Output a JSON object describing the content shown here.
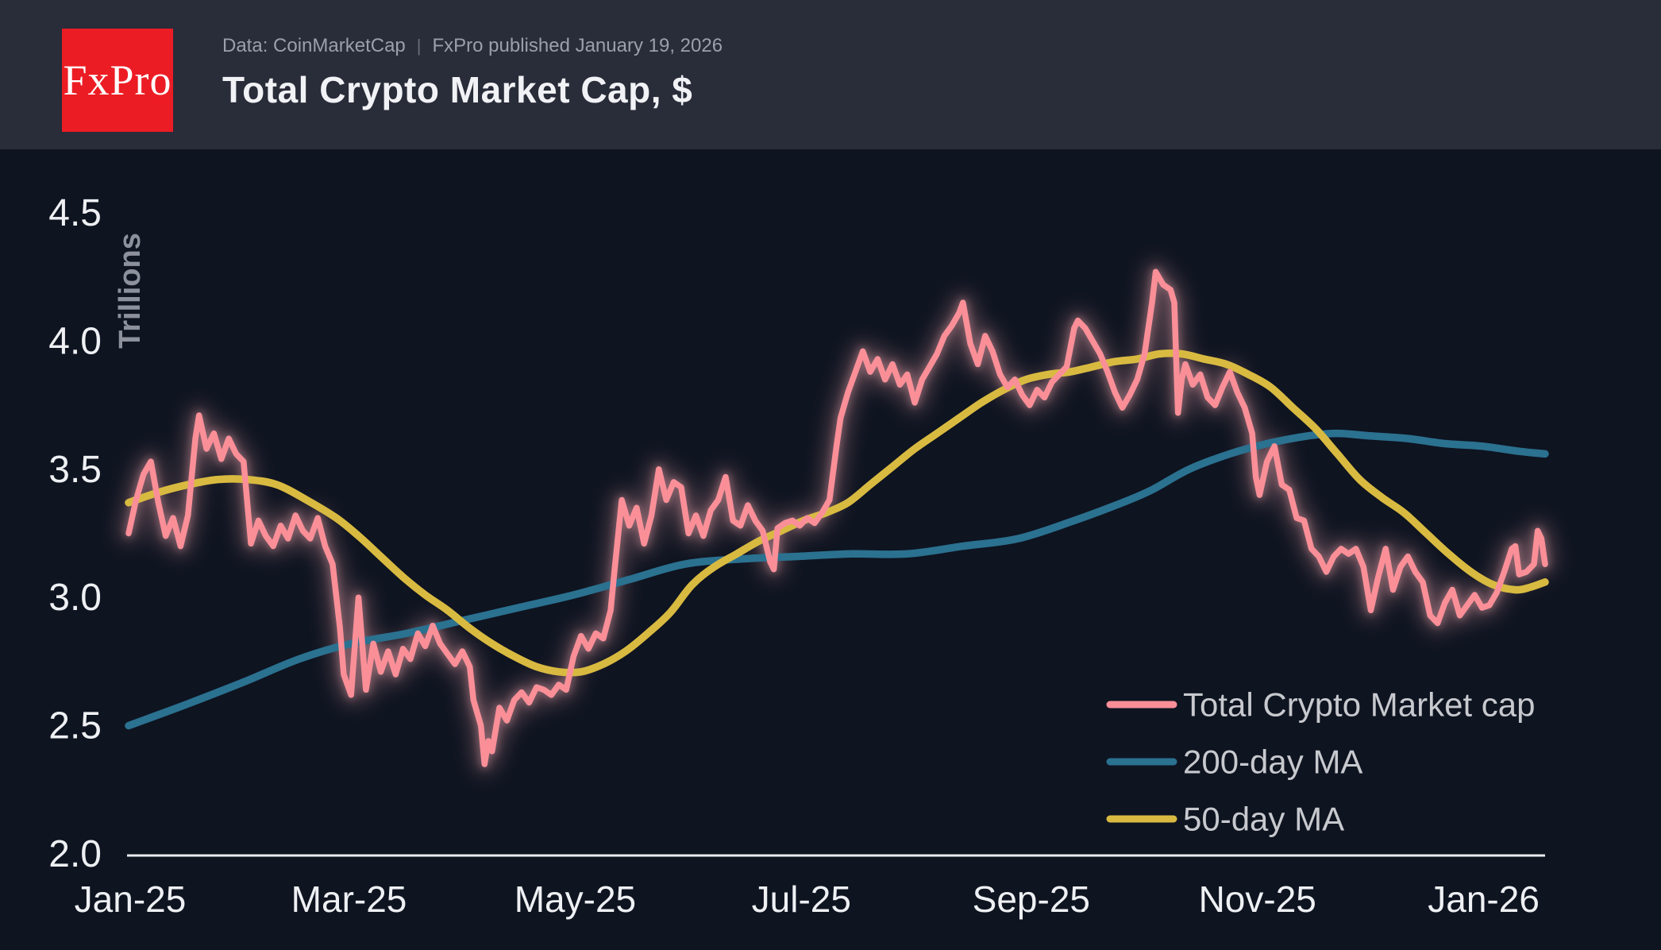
{
  "header": {
    "logo_text": "FxPro",
    "source_line": "Data: CoinMarketCap",
    "separator": "|",
    "published_line": "FxPro published January 19, 2026",
    "title": "Total Crypto Market Cap, $"
  },
  "colors": {
    "page_background": "#0e1420",
    "header_background": "#292c39",
    "logo_red": "#ec1c24",
    "axis": "#e9ebef",
    "tick_label": "#eef0f3",
    "y_axis_title": "#8d919b",
    "legend_text": "#c7c9ce",
    "market_cap_line": "#fa8f98",
    "ma200_line": "#2b7190",
    "ma50_line": "#d9ba41",
    "glow": "#f1a6ae"
  },
  "chart_data": {
    "type": "line",
    "title": "Total Crypto Market Cap, $",
    "ylabel": "Trillions",
    "x_unit": "days since 2025-01-01",
    "xlim_days": [
      0,
      382
    ],
    "ylim": [
      2.0,
      4.5
    ],
    "grid": false,
    "legend_position": "bottom-right",
    "x_tick_labels": [
      "Jan-25",
      "Mar-25",
      "May-25",
      "Jul-25",
      "Sep-25",
      "Nov-25",
      "Jan-26"
    ],
    "x_tick_days": [
      0,
      59,
      120,
      181,
      243,
      304,
      365
    ],
    "y_tick_labels": [
      "4.5",
      "4.0",
      "3.5",
      "3.0",
      "2.5",
      "2.0"
    ],
    "y_tick_values": [
      4.5,
      4.0,
      3.5,
      3.0,
      2.5,
      2.0
    ],
    "series": [
      {
        "name": "Total Crypto Market cap",
        "color": "#fa8f98",
        "width": 7.5,
        "glow": true,
        "smooth": false,
        "points": [
          [
            0,
            3.25
          ],
          [
            2,
            3.38
          ],
          [
            4,
            3.48
          ],
          [
            6,
            3.53
          ],
          [
            8,
            3.37
          ],
          [
            10,
            3.24
          ],
          [
            12,
            3.31
          ],
          [
            14,
            3.2
          ],
          [
            16,
            3.32
          ],
          [
            18,
            3.62
          ],
          [
            19,
            3.71
          ],
          [
            21,
            3.58
          ],
          [
            23,
            3.64
          ],
          [
            25,
            3.54
          ],
          [
            27,
            3.62
          ],
          [
            29,
            3.56
          ],
          [
            31,
            3.53
          ],
          [
            33,
            3.21
          ],
          [
            35,
            3.3
          ],
          [
            37,
            3.24
          ],
          [
            39,
            3.2
          ],
          [
            41,
            3.28
          ],
          [
            43,
            3.23
          ],
          [
            45,
            3.32
          ],
          [
            47,
            3.26
          ],
          [
            49,
            3.23
          ],
          [
            51,
            3.31
          ],
          [
            53,
            3.2
          ],
          [
            55,
            3.13
          ],
          [
            57,
            2.88
          ],
          [
            58,
            2.7
          ],
          [
            60,
            2.62
          ],
          [
            62,
            3.0
          ],
          [
            64,
            2.64
          ],
          [
            66,
            2.82
          ],
          [
            68,
            2.71
          ],
          [
            70,
            2.79
          ],
          [
            72,
            2.7
          ],
          [
            74,
            2.8
          ],
          [
            76,
            2.76
          ],
          [
            78,
            2.86
          ],
          [
            80,
            2.81
          ],
          [
            82,
            2.89
          ],
          [
            84,
            2.82
          ],
          [
            86,
            2.78
          ],
          [
            88,
            2.74
          ],
          [
            90,
            2.79
          ],
          [
            92,
            2.73
          ],
          [
            93,
            2.6
          ],
          [
            95,
            2.5
          ],
          [
            96,
            2.35
          ],
          [
            97,
            2.44
          ],
          [
            98,
            2.4
          ],
          [
            100,
            2.57
          ],
          [
            102,
            2.52
          ],
          [
            104,
            2.6
          ],
          [
            106,
            2.63
          ],
          [
            108,
            2.59
          ],
          [
            110,
            2.65
          ],
          [
            112,
            2.64
          ],
          [
            114,
            2.62
          ],
          [
            116,
            2.66
          ],
          [
            118,
            2.64
          ],
          [
            120,
            2.77
          ],
          [
            122,
            2.85
          ],
          [
            124,
            2.8
          ],
          [
            126,
            2.86
          ],
          [
            128,
            2.84
          ],
          [
            130,
            2.95
          ],
          [
            131,
            3.1
          ],
          [
            133,
            3.38
          ],
          [
            135,
            3.28
          ],
          [
            137,
            3.35
          ],
          [
            139,
            3.21
          ],
          [
            141,
            3.32
          ],
          [
            143,
            3.5
          ],
          [
            145,
            3.38
          ],
          [
            147,
            3.45
          ],
          [
            149,
            3.43
          ],
          [
            151,
            3.25
          ],
          [
            153,
            3.32
          ],
          [
            155,
            3.24
          ],
          [
            157,
            3.34
          ],
          [
            159,
            3.38
          ],
          [
            161,
            3.47
          ],
          [
            163,
            3.3
          ],
          [
            165,
            3.28
          ],
          [
            167,
            3.36
          ],
          [
            169,
            3.3
          ],
          [
            171,
            3.26
          ],
          [
            173,
            3.14
          ],
          [
            174,
            3.11
          ],
          [
            175,
            3.27
          ],
          [
            177,
            3.29
          ],
          [
            179,
            3.3
          ],
          [
            181,
            3.28
          ],
          [
            183,
            3.31
          ],
          [
            185,
            3.29
          ],
          [
            187,
            3.33
          ],
          [
            189,
            3.38
          ],
          [
            191,
            3.6
          ],
          [
            192,
            3.7
          ],
          [
            194,
            3.8
          ],
          [
            196,
            3.88
          ],
          [
            198,
            3.96
          ],
          [
            200,
            3.88
          ],
          [
            202,
            3.93
          ],
          [
            204,
            3.85
          ],
          [
            206,
            3.91
          ],
          [
            208,
            3.83
          ],
          [
            210,
            3.87
          ],
          [
            212,
            3.76
          ],
          [
            214,
            3.85
          ],
          [
            216,
            3.9
          ],
          [
            218,
            3.95
          ],
          [
            220,
            4.02
          ],
          [
            222,
            4.06
          ],
          [
            224,
            4.11
          ],
          [
            225,
            4.15
          ],
          [
            227,
            3.99
          ],
          [
            229,
            3.91
          ],
          [
            231,
            4.02
          ],
          [
            233,
            3.96
          ],
          [
            235,
            3.87
          ],
          [
            237,
            3.82
          ],
          [
            239,
            3.85
          ],
          [
            241,
            3.79
          ],
          [
            243,
            3.75
          ],
          [
            245,
            3.81
          ],
          [
            247,
            3.78
          ],
          [
            249,
            3.84
          ],
          [
            251,
            3.87
          ],
          [
            253,
            3.9
          ],
          [
            255,
            4.05
          ],
          [
            256,
            4.08
          ],
          [
            258,
            4.05
          ],
          [
            260,
            4.0
          ],
          [
            262,
            3.95
          ],
          [
            264,
            3.88
          ],
          [
            266,
            3.8
          ],
          [
            268,
            3.74
          ],
          [
            270,
            3.79
          ],
          [
            272,
            3.85
          ],
          [
            274,
            3.95
          ],
          [
            276,
            4.15
          ],
          [
            277,
            4.27
          ],
          [
            279,
            4.22
          ],
          [
            281,
            4.2
          ],
          [
            282,
            4.15
          ],
          [
            283,
            3.72
          ],
          [
            284,
            3.85
          ],
          [
            285,
            3.91
          ],
          [
            287,
            3.83
          ],
          [
            289,
            3.87
          ],
          [
            291,
            3.78
          ],
          [
            293,
            3.75
          ],
          [
            295,
            3.82
          ],
          [
            297,
            3.88
          ],
          [
            299,
            3.8
          ],
          [
            301,
            3.74
          ],
          [
            303,
            3.64
          ],
          [
            304,
            3.47
          ],
          [
            305,
            3.4
          ],
          [
            307,
            3.53
          ],
          [
            309,
            3.59
          ],
          [
            311,
            3.44
          ],
          [
            313,
            3.42
          ],
          [
            315,
            3.31
          ],
          [
            317,
            3.3
          ],
          [
            319,
            3.19
          ],
          [
            321,
            3.16
          ],
          [
            323,
            3.1
          ],
          [
            325,
            3.16
          ],
          [
            327,
            3.19
          ],
          [
            329,
            3.17
          ],
          [
            331,
            3.19
          ],
          [
            333,
            3.12
          ],
          [
            335,
            2.95
          ],
          [
            337,
            3.08
          ],
          [
            339,
            3.19
          ],
          [
            341,
            3.03
          ],
          [
            343,
            3.12
          ],
          [
            345,
            3.16
          ],
          [
            347,
            3.1
          ],
          [
            349,
            3.06
          ],
          [
            351,
            2.93
          ],
          [
            353,
            2.9
          ],
          [
            355,
            2.98
          ],
          [
            357,
            3.03
          ],
          [
            359,
            2.93
          ],
          [
            361,
            2.97
          ],
          [
            363,
            3.01
          ],
          [
            365,
            2.96
          ],
          [
            367,
            2.97
          ],
          [
            369,
            3.02
          ],
          [
            371,
            3.1
          ],
          [
            373,
            3.19
          ],
          [
            374,
            3.2
          ],
          [
            375,
            3.09
          ],
          [
            377,
            3.1
          ],
          [
            379,
            3.13
          ],
          [
            380,
            3.26
          ],
          [
            381,
            3.23
          ],
          [
            382,
            3.13
          ]
        ]
      },
      {
        "name": "200-day MA",
        "color": "#2b7190",
        "width": 9.5,
        "glow": false,
        "smooth": true,
        "points": [
          [
            0,
            2.5
          ],
          [
            15,
            2.58
          ],
          [
            31,
            2.67
          ],
          [
            46,
            2.76
          ],
          [
            60,
            2.82
          ],
          [
            75,
            2.86
          ],
          [
            90,
            2.91
          ],
          [
            105,
            2.96
          ],
          [
            120,
            3.01
          ],
          [
            135,
            3.07
          ],
          [
            150,
            3.13
          ],
          [
            165,
            3.15
          ],
          [
            180,
            3.16
          ],
          [
            195,
            3.17
          ],
          [
            210,
            3.17
          ],
          [
            225,
            3.2
          ],
          [
            240,
            3.23
          ],
          [
            255,
            3.3
          ],
          [
            268,
            3.37
          ],
          [
            276,
            3.42
          ],
          [
            286,
            3.5
          ],
          [
            297,
            3.56
          ],
          [
            307,
            3.6
          ],
          [
            318,
            3.63
          ],
          [
            326,
            3.64
          ],
          [
            335,
            3.63
          ],
          [
            345,
            3.62
          ],
          [
            355,
            3.6
          ],
          [
            365,
            3.59
          ],
          [
            375,
            3.57
          ],
          [
            382,
            3.56
          ]
        ]
      },
      {
        "name": "50-day MA",
        "color": "#d9ba41",
        "width": 9.5,
        "glow": false,
        "smooth": true,
        "points": [
          [
            0,
            3.37
          ],
          [
            8,
            3.41
          ],
          [
            16,
            3.44
          ],
          [
            24,
            3.46
          ],
          [
            32,
            3.46
          ],
          [
            40,
            3.44
          ],
          [
            48,
            3.38
          ],
          [
            56,
            3.31
          ],
          [
            62,
            3.24
          ],
          [
            68,
            3.16
          ],
          [
            74,
            3.08
          ],
          [
            80,
            3.01
          ],
          [
            86,
            2.95
          ],
          [
            92,
            2.88
          ],
          [
            98,
            2.82
          ],
          [
            104,
            2.77
          ],
          [
            110,
            2.73
          ],
          [
            116,
            2.71
          ],
          [
            122,
            2.71
          ],
          [
            128,
            2.74
          ],
          [
            134,
            2.79
          ],
          [
            140,
            2.86
          ],
          [
            146,
            2.94
          ],
          [
            152,
            3.05
          ],
          [
            158,
            3.12
          ],
          [
            164,
            3.17
          ],
          [
            170,
            3.22
          ],
          [
            176,
            3.26
          ],
          [
            182,
            3.3
          ],
          [
            188,
            3.33
          ],
          [
            194,
            3.37
          ],
          [
            200,
            3.44
          ],
          [
            206,
            3.51
          ],
          [
            212,
            3.58
          ],
          [
            218,
            3.64
          ],
          [
            224,
            3.7
          ],
          [
            230,
            3.76
          ],
          [
            236,
            3.81
          ],
          [
            242,
            3.85
          ],
          [
            248,
            3.87
          ],
          [
            254,
            3.88
          ],
          [
            260,
            3.9
          ],
          [
            266,
            3.92
          ],
          [
            272,
            3.93
          ],
          [
            278,
            3.95
          ],
          [
            284,
            3.95
          ],
          [
            290,
            3.93
          ],
          [
            296,
            3.91
          ],
          [
            302,
            3.87
          ],
          [
            308,
            3.82
          ],
          [
            314,
            3.74
          ],
          [
            320,
            3.66
          ],
          [
            326,
            3.56
          ],
          [
            332,
            3.46
          ],
          [
            338,
            3.39
          ],
          [
            344,
            3.33
          ],
          [
            350,
            3.25
          ],
          [
            356,
            3.17
          ],
          [
            362,
            3.1
          ],
          [
            368,
            3.05
          ],
          [
            374,
            3.03
          ],
          [
            378,
            3.04
          ],
          [
            382,
            3.06
          ]
        ]
      }
    ]
  }
}
